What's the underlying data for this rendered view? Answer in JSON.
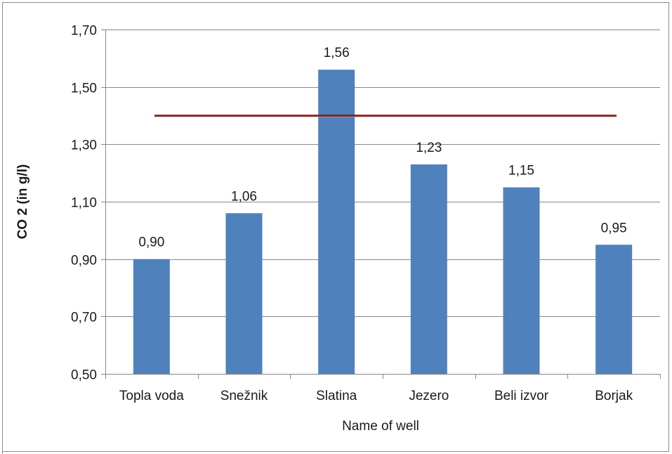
{
  "chart_data": {
    "type": "bar",
    "categories": [
      "Topla voda",
      "Snežnik",
      "Slatina",
      "Jezero",
      "Beli izvor",
      "Borjak"
    ],
    "values": [
      0.9,
      1.06,
      1.56,
      1.23,
      1.15,
      0.95
    ],
    "data_labels": [
      "0,90",
      "1,06",
      "1,56",
      "1,23",
      "1,15",
      "0,95"
    ],
    "xlabel": "Name of well",
    "ylabel": "CO 2 (in g/l)",
    "ylim": [
      0.5,
      1.7
    ],
    "yticks": [
      0.5,
      0.7,
      0.9,
      1.1,
      1.3,
      1.5,
      1.7
    ],
    "ytick_labels": [
      "0,50",
      "0,70",
      "0,90",
      "1,10",
      "1,30",
      "1,50",
      "1,70"
    ],
    "reference_line": {
      "value": 1.4,
      "color": "#c0504d"
    },
    "bar_color": "#4f81bd",
    "grid": "horizontal",
    "legend": "none"
  }
}
